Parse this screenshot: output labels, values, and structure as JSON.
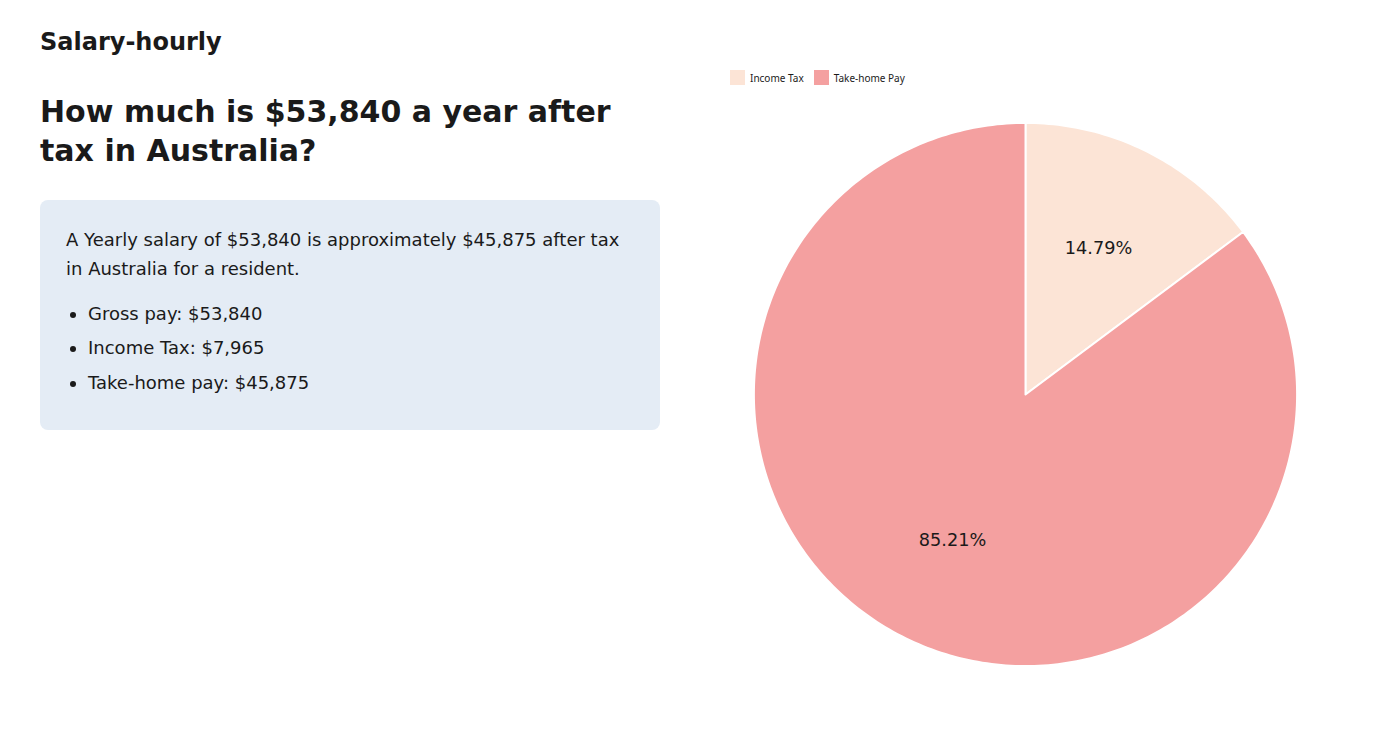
{
  "chart_data": {
    "type": "pie",
    "title": "How much is $53,840 a year after tax in Australia?",
    "annotations": [
      "Salary-hourly",
      "A Yearly salary of $53,840 is approximately $45,875 after tax in Australia for a resident.",
      "Gross pay: $53,840",
      "Income Tax: $7,965",
      "Take-home pay: $45,875"
    ],
    "categories": [
      "Income Tax",
      "Take-home Pay"
    ],
    "values": [
      14.79,
      85.21
    ],
    "value_labels": [
      "14.79%",
      "85.21%"
    ],
    "colors": [
      "#fce4d6",
      "#f4a0a0"
    ],
    "data_labels": true,
    "legend": "upper left"
  }
}
